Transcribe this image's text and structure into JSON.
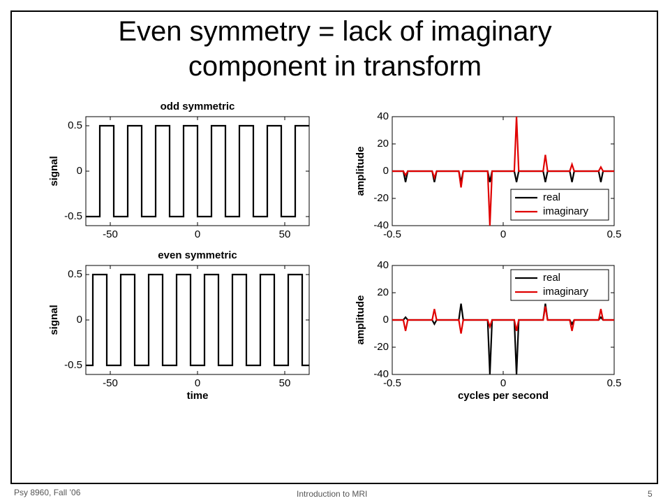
{
  "title": "Even symmetry = lack of imaginary component in transform",
  "footer": {
    "left": "Psy 8960, Fall ’06",
    "center": "Introduction to MRI",
    "page": "5"
  },
  "chart_data": [
    {
      "type": "line",
      "title": "odd symmetric",
      "ylabel": "signal",
      "x": [
        -64,
        -56,
        -56,
        -48,
        -48,
        -40,
        -40,
        -32,
        -32,
        -24,
        -24,
        -16,
        -16,
        -8,
        -8,
        0,
        0,
        8,
        8,
        16,
        16,
        24,
        24,
        32,
        32,
        40,
        40,
        48,
        48,
        56,
        56,
        64
      ],
      "series": [
        {
          "name": "signal",
          "color": "#000000",
          "values": [
            -0.5,
            -0.5,
            0.5,
            0.5,
            -0.5,
            -0.5,
            0.5,
            0.5,
            -0.5,
            -0.5,
            0.5,
            0.5,
            -0.5,
            -0.5,
            0.5,
            0.5,
            -0.5,
            -0.5,
            0.5,
            0.5,
            -0.5,
            -0.5,
            0.5,
            0.5,
            -0.5,
            -0.5,
            0.5,
            0.5,
            -0.5,
            -0.5,
            0.5,
            0.5
          ]
        }
      ],
      "xlim": [
        -64,
        64
      ],
      "ylim": [
        -0.6,
        0.6
      ],
      "xticks": [
        -50,
        0,
        50
      ],
      "yticks": [
        -0.5,
        0,
        0.5
      ]
    },
    {
      "type": "line",
      "ylabel": "amplitude",
      "x": [
        -0.5,
        -0.45,
        -0.44,
        -0.43,
        -0.32,
        -0.31,
        -0.3,
        -0.2,
        -0.19,
        -0.18,
        -0.07,
        -0.06,
        -0.05,
        0.05,
        0.06,
        0.07,
        0.18,
        0.19,
        0.2,
        0.3,
        0.31,
        0.32,
        0.43,
        0.44,
        0.45,
        0.5
      ],
      "series": [
        {
          "name": "real",
          "color": "#000000",
          "values": [
            0,
            0,
            -8,
            0,
            0,
            -8,
            0,
            0,
            -8,
            0,
            0,
            -8,
            0,
            0,
            -8,
            0,
            0,
            -8,
            0,
            0,
            -8,
            0,
            0,
            -8,
            0,
            0
          ]
        },
        {
          "name": "imaginary",
          "color": "#e00000",
          "values": [
            0,
            0,
            -3,
            0,
            0,
            -5,
            0,
            0,
            -12,
            0,
            0,
            -40,
            0,
            0,
            40,
            0,
            0,
            12,
            0,
            0,
            5,
            0,
            0,
            3,
            0,
            0
          ]
        }
      ],
      "xlim": [
        -0.5,
        0.5
      ],
      "ylim": [
        -40,
        40
      ],
      "xticks": [
        -0.5,
        0,
        0.5
      ],
      "yticks": [
        -40,
        -20,
        0,
        20,
        40
      ],
      "legend": "lower right"
    },
    {
      "type": "line",
      "title": "even symmetric",
      "xlabel": "time",
      "ylabel": "signal",
      "x": [
        -64,
        -60,
        -60,
        -52,
        -52,
        -44,
        -44,
        -36,
        -36,
        -28,
        -28,
        -20,
        -20,
        -12,
        -12,
        -4,
        -4,
        4,
        4,
        12,
        12,
        20,
        20,
        28,
        28,
        36,
        36,
        44,
        44,
        52,
        52,
        60,
        60,
        64
      ],
      "series": [
        {
          "name": "signal",
          "color": "#000000",
          "values": [
            -0.5,
            -0.5,
            0.5,
            0.5,
            -0.5,
            -0.5,
            0.5,
            0.5,
            -0.5,
            -0.5,
            0.5,
            0.5,
            -0.5,
            -0.5,
            0.5,
            0.5,
            -0.5,
            -0.5,
            0.5,
            0.5,
            -0.5,
            -0.5,
            0.5,
            0.5,
            -0.5,
            -0.5,
            0.5,
            0.5,
            -0.5,
            -0.5,
            0.5,
            0.5,
            -0.5,
            -0.5
          ]
        }
      ],
      "xlim": [
        -64,
        64
      ],
      "ylim": [
        -0.6,
        0.6
      ],
      "xticks": [
        -50,
        0,
        50
      ],
      "yticks": [
        -0.5,
        0,
        0.5
      ]
    },
    {
      "type": "line",
      "xlabel": "cycles per second",
      "ylabel": "amplitude",
      "x": [
        -0.5,
        -0.45,
        -0.44,
        -0.43,
        -0.32,
        -0.31,
        -0.3,
        -0.2,
        -0.19,
        -0.18,
        -0.07,
        -0.06,
        -0.05,
        0.05,
        0.06,
        0.07,
        0.18,
        0.19,
        0.2,
        0.3,
        0.31,
        0.32,
        0.43,
        0.44,
        0.45,
        0.5
      ],
      "series": [
        {
          "name": "real",
          "color": "#000000",
          "values": [
            0,
            0,
            2,
            0,
            0,
            -3,
            0,
            0,
            12,
            0,
            0,
            -40,
            0,
            0,
            -40,
            0,
            0,
            12,
            0,
            0,
            -3,
            0,
            0,
            2,
            0,
            0
          ]
        },
        {
          "name": "imaginary",
          "color": "#e00000",
          "values": [
            0,
            0,
            -8,
            0,
            0,
            8,
            0,
            0,
            -10,
            0,
            0,
            -5,
            0,
            0,
            -8,
            0,
            0,
            10,
            0,
            0,
            -8,
            0,
            0,
            8,
            0,
            0
          ]
        }
      ],
      "xlim": [
        -0.5,
        0.5
      ],
      "ylim": [
        -40,
        40
      ],
      "xticks": [
        -0.5,
        0,
        0.5
      ],
      "yticks": [
        -40,
        -20,
        0,
        20,
        40
      ],
      "legend": "upper right"
    }
  ]
}
